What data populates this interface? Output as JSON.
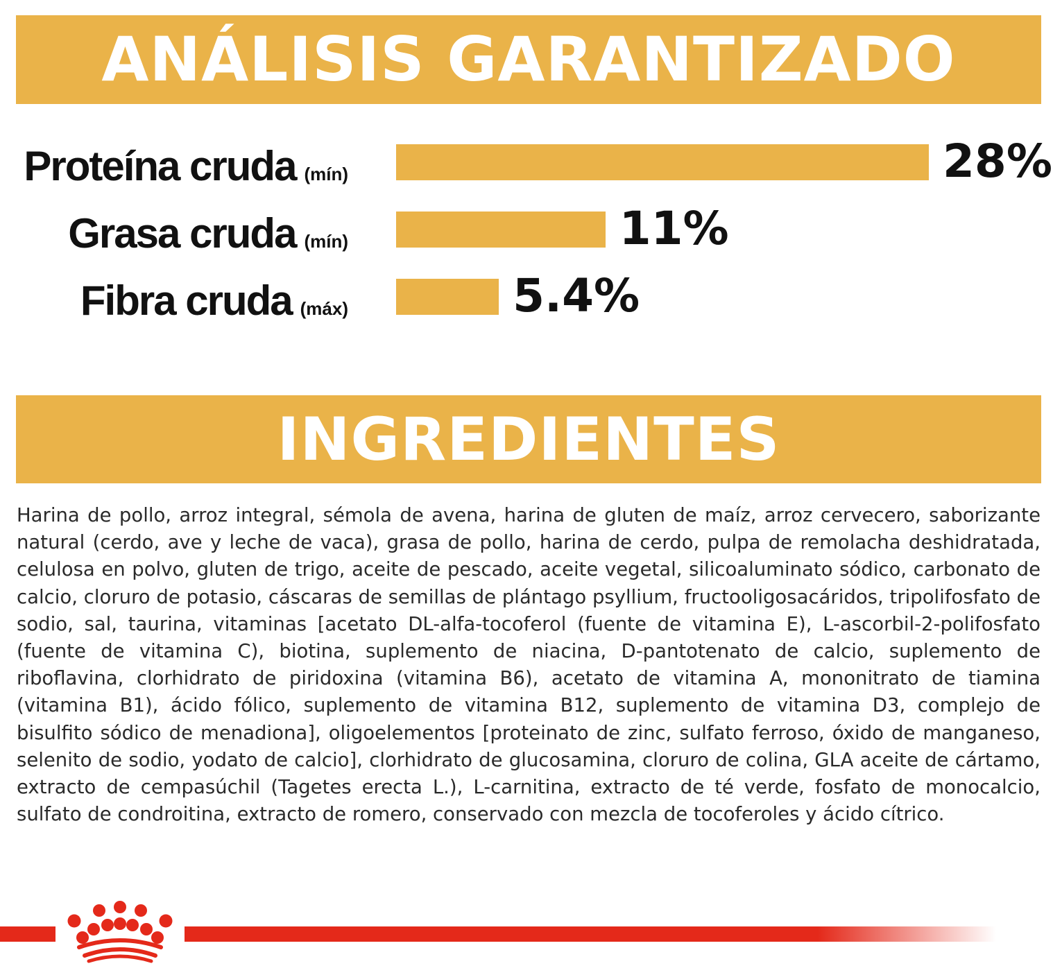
{
  "analysis": {
    "title": "ANÁLISIS GARANTIZADO"
  },
  "chart_data": {
    "type": "bar",
    "orientation": "horizontal",
    "title": "ANÁLISIS GARANTIZADO",
    "categories": [
      "Proteína cruda",
      "Grasa cruda",
      "Fibra cruda"
    ],
    "qualifiers": [
      "(mín)",
      "(mín)",
      "(máx)"
    ],
    "values": [
      28,
      11,
      5.4
    ],
    "value_labels": [
      "28%",
      "11%",
      "5.4%"
    ],
    "unit": "%",
    "bar_color": "#eab349",
    "grid": false,
    "legend": "none"
  },
  "ingredients": {
    "title": "INGREDIENTES",
    "text": "Harina de pollo, arroz integral, sémola de avena, harina de gluten de maíz, arroz cervecero, saborizante natural (cerdo, ave y leche de vaca), grasa de pollo, harina de cerdo, pulpa de remolacha deshidratada, celulosa en polvo, gluten de trigo, aceite de pescado, aceite vegetal, silicoaluminato sódico, carbonato de calcio, cloruro de potasio, cáscaras de semillas de plántago psyllium, fructooligosacáridos, tripolifosfato de sodio, sal, taurina, vitaminas [acetato DL-alfa-tocoferol (fuente de vitamina E), L-ascorbil-2-polifosfato (fuente de vitamina C), biotina, suplemento de niacina, D-pantotenato de calcio, suplemento de riboflavina, clorhidrato de piridoxina (vitamina B6), acetato de vitamina A, mononitrato de tiamina (vitamina B1), ácido fólico, suplemento de vitamina B12, suplemento de vitamina D3, complejo de bisulfito sódico de menadiona], oligoelementos [proteinato de zinc, sulfato ferroso, óxido de manganeso, selenito de sodio, yodato de calcio], clorhidrato de glucosamina, cloruro de colina, GLA aceite de cártamo, extracto de cempasúchil (Tagetes erecta L.), L-carnitina, extracto de té verde, fosfato de monocalcio, sulfato de condroitina, extracto de romero, conservado con mezcla de tocoferoles y ácido cítrico."
  },
  "colors": {
    "accent": "#eab349",
    "brand_red": "#e4291a"
  },
  "footer": {
    "logo_icon": "crown-icon"
  }
}
